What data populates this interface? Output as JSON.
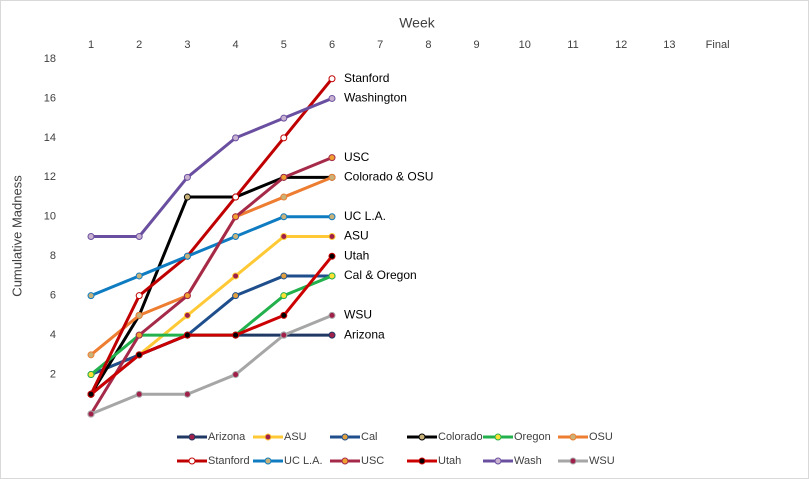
{
  "chart_data": {
    "type": "line",
    "title": "Week",
    "y_label": "Cumulative Madness",
    "categories": [
      "1",
      "2",
      "3",
      "4",
      "5",
      "6",
      "7",
      "8",
      "9",
      "10",
      "11",
      "12",
      "13",
      "Final"
    ],
    "ylim": [
      0,
      18
    ],
    "yticks": [
      2,
      4,
      6,
      8,
      10,
      12,
      14,
      16,
      18
    ],
    "series": [
      {
        "name": "Arizona",
        "color": "#1f3864",
        "marker_color": "#a0204a",
        "values": [
          1,
          3,
          4,
          4,
          4,
          4,
          null,
          null,
          null,
          null,
          null,
          null,
          null,
          null
        ]
      },
      {
        "name": "ASU",
        "color": "#ffc936",
        "marker_color": "#a0204a",
        "values": [
          2,
          3,
          5,
          7,
          9,
          9,
          null,
          null,
          null,
          null,
          null,
          null,
          null,
          null
        ]
      },
      {
        "name": "Cal",
        "color": "#1f4e8c",
        "marker_color": "#e0a040",
        "values": [
          2,
          3,
          4,
          6,
          7,
          7,
          null,
          null,
          null,
          null,
          null,
          null,
          null,
          null
        ]
      },
      {
        "name": "Colorado",
        "color": "#000000",
        "marker_color": "#c9b27a",
        "values": [
          1,
          5,
          11,
          11,
          12,
          12,
          null,
          null,
          null,
          null,
          null,
          null,
          null,
          null
        ]
      },
      {
        "name": "Oregon",
        "color": "#22b14c",
        "marker_color": "#ffe033",
        "values": [
          2,
          4,
          4,
          4,
          6,
          7,
          null,
          null,
          null,
          null,
          null,
          null,
          null,
          null
        ]
      },
      {
        "name": "OSU",
        "color": "#ed7d31",
        "marker_color": "#c9b27a",
        "values": [
          3,
          5,
          6,
          10,
          11,
          12,
          null,
          null,
          null,
          null,
          null,
          null,
          null,
          null
        ]
      },
      {
        "name": "Stanford",
        "color": "#c00000",
        "marker_color": "#ffffff",
        "values": [
          1,
          6,
          8,
          11,
          14,
          17,
          null,
          null,
          null,
          null,
          null,
          null,
          null,
          null
        ]
      },
      {
        "name": "UC L.A.",
        "color": "#0f7cc2",
        "marker_color": "#c9b27a",
        "values": [
          6,
          7,
          8,
          9,
          10,
          10,
          null,
          null,
          null,
          null,
          null,
          null,
          null,
          null
        ]
      },
      {
        "name": "USC",
        "color": "#a52a4a",
        "marker_color": "#f0a030",
        "values": [
          0,
          4,
          6,
          10,
          12,
          13,
          null,
          null,
          null,
          null,
          null,
          null,
          null,
          null
        ]
      },
      {
        "name": "Utah",
        "color": "#cc0000",
        "marker_color": "#000000",
        "values": [
          1,
          3,
          4,
          4,
          5,
          8,
          null,
          null,
          null,
          null,
          null,
          null,
          null,
          null
        ]
      },
      {
        "name": "Wash",
        "color": "#6a4fa0",
        "marker_color": "#c9b2d0",
        "values": [
          9,
          9,
          12,
          14,
          15,
          16,
          null,
          null,
          null,
          null,
          null,
          null,
          null,
          null
        ]
      },
      {
        "name": "WSU",
        "color": "#a6a6a6",
        "marker_color": "#a0204a",
        "values": [
          0,
          1,
          1,
          2,
          4,
          5,
          null,
          null,
          null,
          null,
          null,
          null,
          null,
          null
        ]
      }
    ],
    "annotations": [
      {
        "text": "Stanford",
        "x": "6",
        "y": 17
      },
      {
        "text": "Washington",
        "x": "6",
        "y": 16
      },
      {
        "text": "USC",
        "x": "6",
        "y": 13
      },
      {
        "text": "Colorado & OSU",
        "x": "6",
        "y": 12
      },
      {
        "text": "UC L.A.",
        "x": "6",
        "y": 10
      },
      {
        "text": "ASU",
        "x": "6",
        "y": 9
      },
      {
        "text": "Utah",
        "x": "6",
        "y": 8
      },
      {
        "text": "Cal & Oregon",
        "x": "6",
        "y": 7
      },
      {
        "text": "WSU",
        "x": "6",
        "y": 5
      },
      {
        "text": "Arizona",
        "x": "6",
        "y": 4
      }
    ],
    "legend": "bottom"
  }
}
